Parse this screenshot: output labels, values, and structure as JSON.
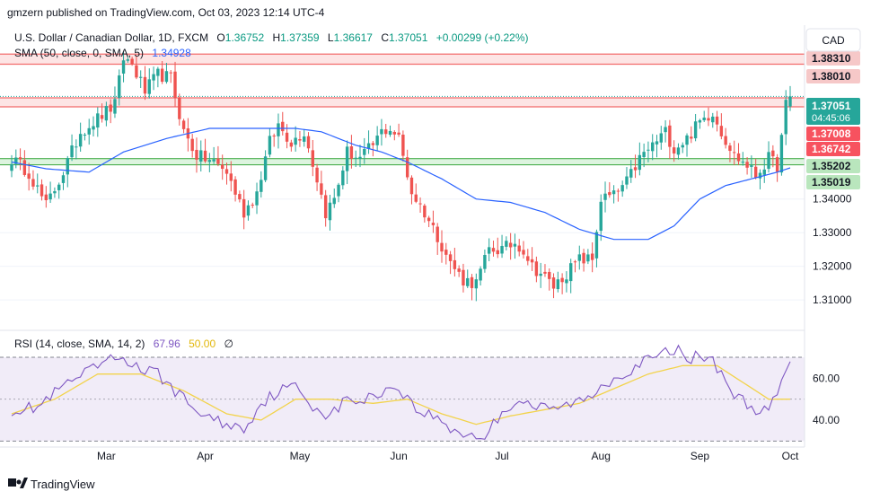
{
  "header": {
    "publisher": "gmzern published on TradingView.com, Oct 03, 2023 12:14 UTC-4"
  },
  "legend": {
    "symbol": "U.S. Dollar / Canadian Dollar, 1D, FXCM",
    "ohlc": {
      "open_label": "O",
      "open": "1.36752",
      "high_label": "H",
      "high": "1.37359",
      "low_label": "L",
      "low": "1.36617",
      "close_label": "C",
      "close": "1.37051",
      "change": "+0.00299 (+0.22%)"
    },
    "sma_label": "SMA (50, close, 0, SMA, 5)",
    "sma_value": "1.34928",
    "rsi_label": "RSI (14, close, SMA, 14, 2)",
    "rsi_value": "67.96",
    "rsi_ma_value": "50.00",
    "rsi_extra": "∅"
  },
  "currency_button": "CAD",
  "price_axis": {
    "ticks": [
      "1.31000",
      "1.32000",
      "1.33000",
      "1.34000"
    ],
    "tick_values": [
      1.31,
      1.32,
      1.33,
      1.34
    ],
    "range": [
      1.3015,
      1.3917
    ]
  },
  "price_labels": [
    {
      "text": "1.38310",
      "value": 1.3831,
      "bg": "#f6c8c8",
      "fg": "#131722"
    },
    {
      "text": "1.38010",
      "value": 1.3801,
      "bg": "#f6c8c8",
      "fg": "#131722"
    },
    {
      "text": "1.37008",
      "value": 1.37008,
      "bg": "#f7525f",
      "fg": "#ffffff"
    },
    {
      "text": "1.36742",
      "value": 1.36742,
      "bg": "#f7525f",
      "fg": "#ffffff"
    },
    {
      "text": "1.35202",
      "value": 1.35202,
      "bg": "#b9e6bd",
      "fg": "#131722"
    },
    {
      "text": "1.35019",
      "value": 1.35019,
      "bg": "#b9e6bd",
      "fg": "#131722"
    }
  ],
  "last_price_label": {
    "price": "1.37051",
    "countdown": "04:45:06",
    "value": 1.37051,
    "bg": "#26a69a"
  },
  "rsi_axis": {
    "ticks": [
      "40.00",
      "60.00"
    ],
    "tick_values": [
      40,
      60
    ],
    "range": [
      28,
      82
    ]
  },
  "time_axis": {
    "labels": [
      {
        "text": "Mar",
        "index": 22
      },
      {
        "text": "Apr",
        "index": 45
      },
      {
        "text": "May",
        "index": 67
      },
      {
        "text": "Jun",
        "index": 90
      },
      {
        "text": "Jul",
        "index": 114
      },
      {
        "text": "Aug",
        "index": 137
      },
      {
        "text": "Sep",
        "index": 160
      },
      {
        "text": "Oct",
        "index": 181
      }
    ]
  },
  "footer": {
    "brand": "TradingView"
  },
  "colors": {
    "up": "#26a69a",
    "down": "#ef5350",
    "sma": "#2962ff",
    "rsi": "#7e57c2",
    "rsi_ma": "#f2d34b",
    "resistance_fill": "#fde0e0",
    "resistance_line": "#f26b6b",
    "support_fill": "#d7f2d9",
    "support_line": "#4caf50"
  },
  "chart_data": [
    {
      "type": "candlestick",
      "title": "U.S. Dollar / Canadian Dollar, 1D, FXCM",
      "ylim": [
        1.3015,
        1.3917
      ],
      "zones": [
        {
          "kind": "resistance",
          "from": 1.3801,
          "to": 1.3831
        },
        {
          "kind": "resistance",
          "from": 1.36742,
          "to": 1.37008
        },
        {
          "kind": "support",
          "from": 1.35019,
          "to": 1.35202
        }
      ],
      "anchors_close": [
        [
          0,
          1.352
        ],
        [
          4,
          1.348
        ],
        [
          8,
          1.338
        ],
        [
          12,
          1.348
        ],
        [
          16,
          1.36
        ],
        [
          20,
          1.364
        ],
        [
          24,
          1.368
        ],
        [
          26,
          1.382
        ],
        [
          28,
          1.38
        ],
        [
          31,
          1.372
        ],
        [
          34,
          1.377
        ],
        [
          37,
          1.376
        ],
        [
          40,
          1.36
        ],
        [
          43,
          1.353
        ],
        [
          47,
          1.351
        ],
        [
          50,
          1.348
        ],
        [
          54,
          1.336
        ],
        [
          57,
          1.342
        ],
        [
          60,
          1.357
        ],
        [
          62,
          1.362
        ],
        [
          65,
          1.357
        ],
        [
          68,
          1.36
        ],
        [
          71,
          1.346
        ],
        [
          73,
          1.336
        ],
        [
          75,
          1.34
        ],
        [
          78,
          1.354
        ],
        [
          81,
          1.352
        ],
        [
          84,
          1.356
        ],
        [
          86,
          1.36
        ],
        [
          88,
          1.361
        ],
        [
          90,
          1.358
        ],
        [
          93,
          1.342
        ],
        [
          96,
          1.336
        ],
        [
          99,
          1.329
        ],
        [
          102,
          1.321
        ],
        [
          105,
          1.316
        ],
        [
          108,
          1.315
        ],
        [
          111,
          1.325
        ],
        [
          114,
          1.325
        ],
        [
          117,
          1.327
        ],
        [
          119,
          1.325
        ],
        [
          121,
          1.32
        ],
        [
          123,
          1.318
        ],
        [
          126,
          1.314
        ],
        [
          129,
          1.318
        ],
        [
          132,
          1.322
        ],
        [
          135,
          1.322
        ],
        [
          137,
          1.34
        ],
        [
          140,
          1.341
        ],
        [
          143,
          1.345
        ],
        [
          146,
          1.352
        ],
        [
          149,
          1.356
        ],
        [
          152,
          1.36
        ],
        [
          154,
          1.355
        ],
        [
          157,
          1.358
        ],
        [
          160,
          1.363
        ],
        [
          163,
          1.366
        ],
        [
          165,
          1.36
        ],
        [
          168,
          1.353
        ],
        [
          171,
          1.35
        ],
        [
          173,
          1.347
        ],
        [
          176,
          1.352
        ],
        [
          178,
          1.35
        ],
        [
          179,
          1.358
        ],
        [
          180,
          1.368
        ],
        [
          181,
          1.37051
        ]
      ],
      "sma_anchors": [
        [
          0,
          1.351
        ],
        [
          8,
          1.349
        ],
        [
          18,
          1.348
        ],
        [
          26,
          1.354
        ],
        [
          36,
          1.358
        ],
        [
          46,
          1.361
        ],
        [
          56,
          1.361
        ],
        [
          66,
          1.361
        ],
        [
          72,
          1.36
        ],
        [
          80,
          1.356
        ],
        [
          86,
          1.354
        ],
        [
          92,
          1.351
        ],
        [
          100,
          1.346
        ],
        [
          108,
          1.34
        ],
        [
          116,
          1.339
        ],
        [
          124,
          1.336
        ],
        [
          132,
          1.331
        ],
        [
          140,
          1.328
        ],
        [
          148,
          1.328
        ],
        [
          154,
          1.332
        ],
        [
          160,
          1.34
        ],
        [
          166,
          1.344
        ],
        [
          172,
          1.346
        ],
        [
          178,
          1.348
        ],
        [
          181,
          1.34928
        ]
      ]
    },
    {
      "type": "line",
      "title": "RSI (14, close, SMA, 14, 2)",
      "ylim": [
        28,
        82
      ],
      "levels": [
        30,
        50,
        70
      ],
      "rsi_anchors": [
        [
          0,
          45
        ],
        [
          6,
          46
        ],
        [
          12,
          56
        ],
        [
          18,
          63
        ],
        [
          22,
          68
        ],
        [
          26,
          70
        ],
        [
          30,
          64
        ],
        [
          34,
          62
        ],
        [
          38,
          54
        ],
        [
          42,
          46
        ],
        [
          46,
          41
        ],
        [
          50,
          38
        ],
        [
          54,
          36
        ],
        [
          58,
          48
        ],
        [
          62,
          54
        ],
        [
          66,
          56
        ],
        [
          70,
          47
        ],
        [
          74,
          42
        ],
        [
          78,
          50
        ],
        [
          82,
          49
        ],
        [
          86,
          54
        ],
        [
          90,
          56
        ],
        [
          94,
          45
        ],
        [
          98,
          42
        ],
        [
          102,
          36
        ],
        [
          106,
          33
        ],
        [
          110,
          32
        ],
        [
          114,
          44
        ],
        [
          118,
          50
        ],
        [
          122,
          46
        ],
        [
          126,
          45
        ],
        [
          130,
          48
        ],
        [
          134,
          50
        ],
        [
          138,
          58
        ],
        [
          142,
          62
        ],
        [
          146,
          67
        ],
        [
          150,
          70
        ],
        [
          154,
          74
        ],
        [
          158,
          70
        ],
        [
          162,
          70
        ],
        [
          165,
          63
        ],
        [
          168,
          52
        ],
        [
          172,
          46
        ],
        [
          176,
          44
        ],
        [
          178,
          52
        ],
        [
          180,
          63
        ],
        [
          181,
          67.96
        ]
      ],
      "rsi_ma_anchors": [
        [
          0,
          43
        ],
        [
          10,
          50
        ],
        [
          20,
          62
        ],
        [
          30,
          62
        ],
        [
          40,
          54
        ],
        [
          50,
          43
        ],
        [
          58,
          40
        ],
        [
          66,
          50
        ],
        [
          74,
          50
        ],
        [
          84,
          48
        ],
        [
          92,
          50
        ],
        [
          100,
          43
        ],
        [
          108,
          38
        ],
        [
          116,
          42
        ],
        [
          124,
          45
        ],
        [
          132,
          48
        ],
        [
          140,
          55
        ],
        [
          148,
          62
        ],
        [
          156,
          66
        ],
        [
          164,
          66
        ],
        [
          170,
          58
        ],
        [
          176,
          50
        ],
        [
          181,
          50
        ]
      ]
    }
  ]
}
